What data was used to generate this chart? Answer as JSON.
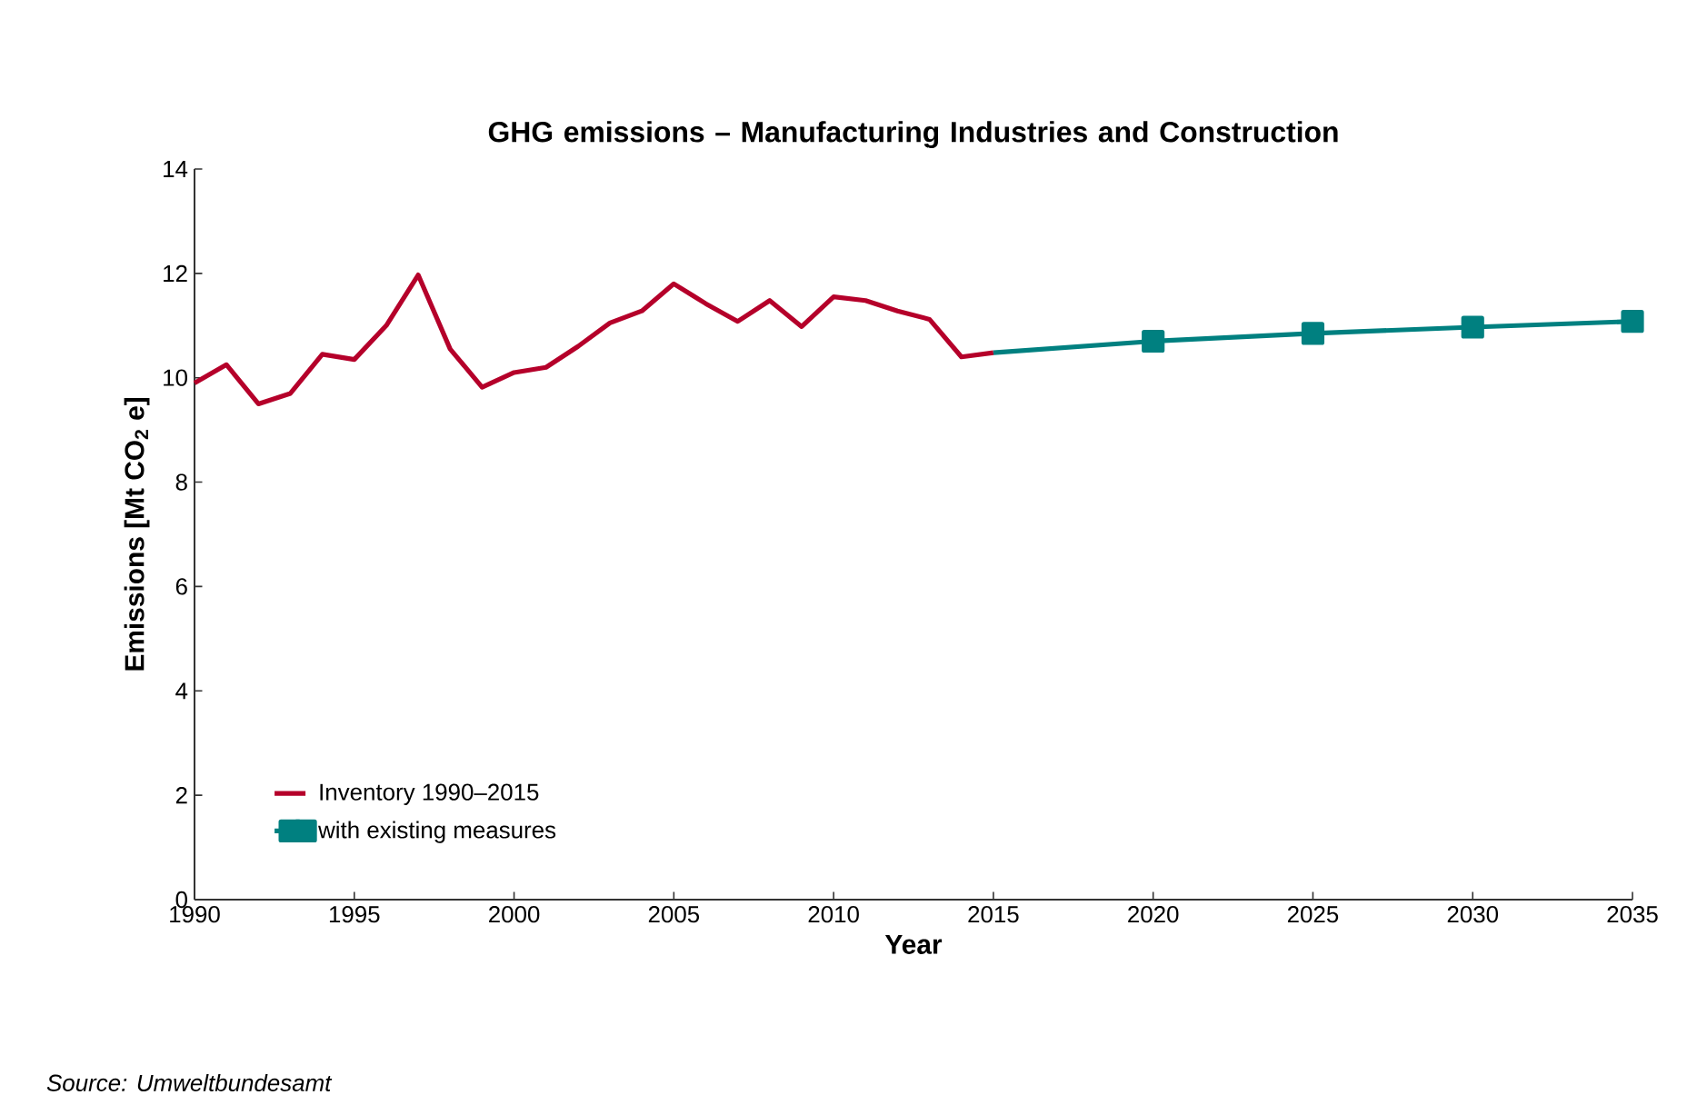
{
  "chart_data": {
    "type": "line",
    "title": "GHG emissions – Manufacturing Industries and Construction",
    "xlabel": "Year",
    "ylabel": "Emissions [Mt CO$_{2}$ e]",
    "xlim": [
      1990,
      2035
    ],
    "ylim": [
      0,
      14
    ],
    "xticks": [
      1990,
      1995,
      2000,
      2005,
      2010,
      2015,
      2020,
      2025,
      2030,
      2035
    ],
    "yticks": [
      0,
      2,
      4,
      6,
      8,
      10,
      12,
      14
    ],
    "legend": "bottom left",
    "grid": false,
    "series": [
      {
        "name": "Inventory 1990–2015",
        "color": "#b5002a",
        "marker": "none",
        "x": [
          1990,
          1991,
          1992,
          1993,
          1994,
          1995,
          1996,
          1997,
          1998,
          1999,
          2000,
          2001,
          2002,
          2003,
          2004,
          2005,
          2006,
          2007,
          2008,
          2009,
          2010,
          2011,
          2012,
          2013,
          2014,
          2015
        ],
        "values": [
          9.9,
          10.25,
          9.5,
          9.7,
          10.45,
          10.35,
          11.0,
          11.97,
          10.55,
          9.82,
          10.1,
          10.2,
          10.6,
          11.05,
          11.28,
          11.8,
          11.42,
          11.08,
          11.48,
          10.98,
          11.55,
          11.48,
          11.28,
          11.12,
          10.4,
          10.48
        ]
      },
      {
        "name": "with existing measures",
        "color": "#008080",
        "marker": "square",
        "x": [
          2015,
          2020,
          2025,
          2030,
          2035
        ],
        "values": [
          10.48,
          10.7,
          10.85,
          10.97,
          11.08
        ]
      }
    ],
    "annotations": [
      "Source: Umweltbundesamt"
    ]
  }
}
